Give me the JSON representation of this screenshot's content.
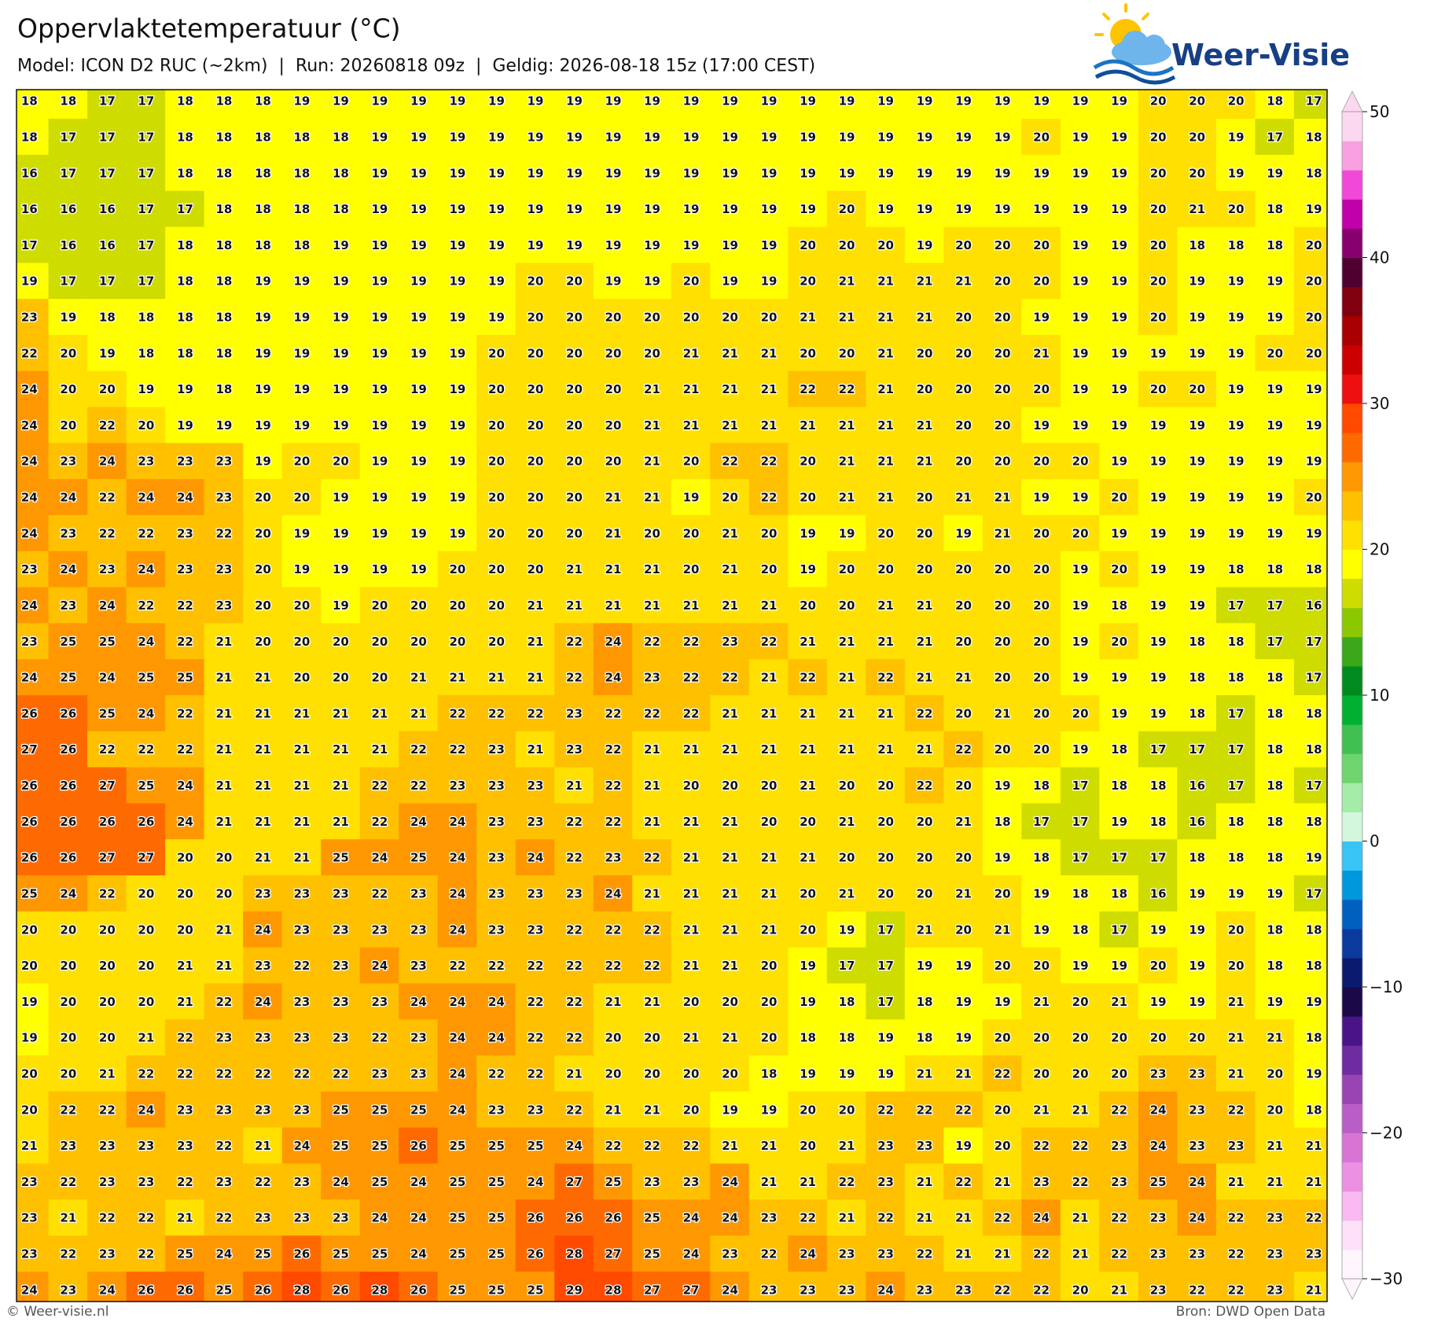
{
  "header": {
    "title": "Oppervlaktetemperatuur (°C)",
    "subtitle": "Model: ICON D2 RUC (~2km)  |  Run: 20260818 09z  |  Geldig: 2026-08-18 15z (17:00 CEST)"
  },
  "logo": {
    "text": "Weer-Visie"
  },
  "map": {
    "rows": [
      [
        18,
        18,
        17,
        17,
        18,
        18,
        18,
        19,
        19,
        19,
        19,
        19,
        19,
        19,
        19,
        19,
        19,
        19,
        19,
        19,
        19,
        19,
        19,
        19,
        19,
        19,
        19,
        19,
        19,
        20,
        20,
        20,
        18,
        17
      ],
      [
        18,
        17,
        17,
        17,
        18,
        18,
        18,
        18,
        18,
        19,
        19,
        19,
        19,
        19,
        19,
        19,
        19,
        19,
        19,
        19,
        19,
        19,
        19,
        19,
        19,
        19,
        20,
        19,
        19,
        20,
        20,
        19,
        17,
        18
      ],
      [
        16,
        17,
        17,
        17,
        18,
        18,
        18,
        18,
        18,
        19,
        19,
        19,
        19,
        19,
        19,
        19,
        19,
        19,
        19,
        19,
        19,
        19,
        19,
        19,
        19,
        19,
        19,
        19,
        19,
        20,
        20,
        19,
        19,
        18
      ],
      [
        16,
        16,
        16,
        17,
        17,
        18,
        18,
        18,
        18,
        19,
        19,
        19,
        19,
        19,
        19,
        19,
        19,
        19,
        19,
        19,
        19,
        20,
        19,
        19,
        19,
        19,
        19,
        19,
        19,
        20,
        21,
        20,
        18,
        19
      ],
      [
        17,
        16,
        16,
        17,
        18,
        18,
        18,
        18,
        19,
        19,
        19,
        19,
        19,
        19,
        19,
        19,
        19,
        19,
        19,
        19,
        20,
        20,
        20,
        19,
        20,
        20,
        20,
        19,
        19,
        20,
        18,
        18,
        18,
        20
      ],
      [
        19,
        17,
        17,
        17,
        18,
        18,
        19,
        19,
        19,
        19,
        19,
        19,
        19,
        20,
        20,
        19,
        19,
        20,
        19,
        19,
        20,
        21,
        21,
        21,
        21,
        20,
        20,
        19,
        19,
        20,
        19,
        19,
        19,
        20
      ],
      [
        23,
        19,
        18,
        18,
        18,
        18,
        19,
        19,
        19,
        19,
        19,
        19,
        19,
        20,
        20,
        20,
        20,
        20,
        20,
        20,
        21,
        21,
        21,
        21,
        20,
        20,
        19,
        19,
        19,
        20,
        19,
        19,
        19,
        20
      ],
      [
        22,
        20,
        19,
        18,
        18,
        18,
        19,
        19,
        19,
        19,
        19,
        19,
        20,
        20,
        20,
        20,
        20,
        21,
        21,
        21,
        20,
        20,
        21,
        20,
        20,
        20,
        21,
        19,
        19,
        19,
        19,
        19,
        20,
        20
      ],
      [
        24,
        20,
        20,
        19,
        19,
        18,
        19,
        19,
        19,
        19,
        19,
        19,
        20,
        20,
        20,
        20,
        21,
        21,
        21,
        21,
        22,
        22,
        21,
        20,
        20,
        20,
        20,
        19,
        19,
        20,
        20,
        19,
        19,
        19
      ],
      [
        24,
        20,
        22,
        20,
        19,
        19,
        19,
        19,
        19,
        19,
        19,
        19,
        20,
        20,
        20,
        20,
        21,
        21,
        21,
        21,
        21,
        21,
        21,
        21,
        20,
        20,
        19,
        19,
        19,
        19,
        19,
        19,
        19,
        19
      ],
      [
        24,
        23,
        24,
        23,
        23,
        23,
        19,
        20,
        20,
        19,
        19,
        19,
        20,
        20,
        20,
        20,
        21,
        20,
        22,
        22,
        20,
        21,
        21,
        21,
        20,
        20,
        20,
        20,
        19,
        19,
        19,
        19,
        19,
        19
      ],
      [
        24,
        24,
        22,
        24,
        24,
        23,
        20,
        20,
        19,
        19,
        19,
        19,
        20,
        20,
        20,
        21,
        21,
        19,
        20,
        22,
        20,
        21,
        21,
        20,
        21,
        21,
        19,
        19,
        20,
        19,
        19,
        19,
        19,
        20
      ],
      [
        24,
        23,
        22,
        22,
        23,
        22,
        20,
        19,
        19,
        19,
        19,
        19,
        20,
        20,
        20,
        21,
        20,
        20,
        21,
        20,
        19,
        19,
        20,
        20,
        19,
        21,
        20,
        20,
        19,
        19,
        19,
        19,
        19,
        19
      ],
      [
        23,
        24,
        23,
        24,
        23,
        23,
        20,
        19,
        19,
        19,
        19,
        20,
        20,
        20,
        21,
        21,
        21,
        20,
        21,
        20,
        19,
        20,
        20,
        20,
        20,
        20,
        20,
        19,
        20,
        19,
        19,
        18,
        18,
        18
      ],
      [
        24,
        23,
        24,
        22,
        22,
        23,
        20,
        20,
        19,
        20,
        20,
        20,
        20,
        21,
        21,
        21,
        21,
        21,
        21,
        21,
        20,
        20,
        21,
        21,
        20,
        20,
        20,
        19,
        18,
        19,
        19,
        17,
        17,
        16
      ],
      [
        23,
        25,
        25,
        24,
        22,
        21,
        20,
        20,
        20,
        20,
        20,
        20,
        20,
        21,
        22,
        24,
        22,
        22,
        23,
        22,
        21,
        21,
        21,
        21,
        20,
        20,
        20,
        19,
        20,
        19,
        18,
        18,
        17,
        17
      ],
      [
        24,
        25,
        24,
        25,
        25,
        21,
        21,
        20,
        20,
        20,
        21,
        21,
        21,
        21,
        22,
        24,
        23,
        22,
        22,
        21,
        22,
        21,
        22,
        21,
        21,
        20,
        20,
        19,
        19,
        19,
        18,
        18,
        18,
        17
      ],
      [
        26,
        26,
        25,
        24,
        22,
        21,
        21,
        21,
        21,
        21,
        21,
        22,
        22,
        22,
        23,
        22,
        22,
        22,
        21,
        21,
        21,
        21,
        21,
        22,
        20,
        21,
        20,
        20,
        19,
        19,
        18,
        17,
        18,
        18
      ],
      [
        27,
        26,
        22,
        22,
        22,
        21,
        21,
        21,
        21,
        21,
        22,
        22,
        23,
        21,
        23,
        22,
        21,
        21,
        21,
        21,
        21,
        21,
        21,
        21,
        22,
        20,
        20,
        19,
        18,
        17,
        17,
        17,
        18,
        18
      ],
      [
        26,
        26,
        27,
        25,
        24,
        21,
        21,
        21,
        21,
        22,
        22,
        23,
        23,
        23,
        21,
        22,
        21,
        20,
        20,
        20,
        21,
        20,
        20,
        22,
        20,
        19,
        18,
        17,
        18,
        18,
        16,
        17,
        18,
        17
      ],
      [
        26,
        26,
        26,
        26,
        24,
        21,
        21,
        21,
        21,
        22,
        24,
        24,
        23,
        23,
        22,
        22,
        21,
        21,
        21,
        20,
        20,
        21,
        20,
        20,
        21,
        18,
        17,
        17,
        19,
        18,
        16,
        18,
        18,
        18
      ],
      [
        26,
        26,
        27,
        27,
        20,
        20,
        21,
        21,
        25,
        24,
        25,
        24,
        23,
        24,
        22,
        23,
        22,
        21,
        21,
        21,
        21,
        20,
        20,
        20,
        20,
        19,
        18,
        17,
        17,
        17,
        18,
        18,
        18,
        19
      ],
      [
        25,
        24,
        22,
        20,
        20,
        20,
        23,
        23,
        23,
        22,
        23,
        24,
        23,
        23,
        23,
        24,
        21,
        21,
        21,
        21,
        20,
        21,
        20,
        20,
        21,
        20,
        19,
        18,
        18,
        16,
        19,
        19,
        19,
        17
      ],
      [
        20,
        20,
        20,
        20,
        20,
        21,
        24,
        23,
        23,
        23,
        23,
        24,
        23,
        23,
        22,
        22,
        22,
        21,
        21,
        21,
        20,
        19,
        17,
        21,
        20,
        21,
        19,
        18,
        17,
        19,
        19,
        20,
        18,
        18
      ],
      [
        20,
        20,
        20,
        20,
        21,
        21,
        23,
        22,
        23,
        24,
        23,
        22,
        22,
        22,
        22,
        22,
        22,
        21,
        21,
        20,
        19,
        17,
        17,
        19,
        19,
        20,
        20,
        19,
        19,
        20,
        19,
        20,
        18,
        18
      ],
      [
        19,
        20,
        20,
        20,
        21,
        22,
        24,
        23,
        23,
        23,
        24,
        24,
        24,
        22,
        22,
        21,
        21,
        20,
        20,
        20,
        19,
        18,
        17,
        18,
        19,
        19,
        21,
        20,
        21,
        19,
        19,
        21,
        19,
        19
      ],
      [
        19,
        20,
        20,
        21,
        22,
        23,
        23,
        23,
        23,
        22,
        23,
        24,
        24,
        22,
        22,
        20,
        20,
        21,
        21,
        20,
        18,
        18,
        19,
        18,
        19,
        20,
        20,
        20,
        20,
        20,
        20,
        21,
        21,
        18
      ],
      [
        20,
        20,
        21,
        22,
        22,
        22,
        22,
        22,
        22,
        23,
        23,
        24,
        22,
        22,
        21,
        20,
        20,
        20,
        20,
        18,
        19,
        19,
        19,
        21,
        21,
        22,
        20,
        20,
        20,
        23,
        23,
        21,
        20,
        19
      ],
      [
        20,
        22,
        22,
        24,
        23,
        23,
        23,
        23,
        25,
        25,
        25,
        24,
        23,
        23,
        22,
        21,
        21,
        20,
        19,
        19,
        20,
        20,
        22,
        22,
        22,
        20,
        21,
        21,
        22,
        24,
        23,
        22,
        20,
        18
      ],
      [
        21,
        23,
        23,
        23,
        23,
        22,
        21,
        24,
        25,
        25,
        26,
        25,
        25,
        25,
        24,
        22,
        22,
        22,
        21,
        21,
        20,
        21,
        23,
        23,
        19,
        20,
        22,
        22,
        23,
        24,
        23,
        23,
        21,
        21
      ],
      [
        23,
        22,
        23,
        23,
        22,
        23,
        22,
        23,
        24,
        25,
        24,
        25,
        25,
        24,
        27,
        25,
        23,
        23,
        24,
        21,
        21,
        22,
        23,
        21,
        22,
        21,
        23,
        22,
        23,
        25,
        24,
        21,
        21,
        21
      ],
      [
        23,
        21,
        22,
        22,
        21,
        22,
        23,
        23,
        23,
        24,
        24,
        25,
        25,
        26,
        26,
        26,
        25,
        24,
        24,
        23,
        22,
        21,
        22,
        21,
        21,
        22,
        24,
        21,
        22,
        23,
        24,
        22,
        23,
        22
      ],
      [
        23,
        22,
        23,
        22,
        25,
        24,
        25,
        26,
        25,
        25,
        24,
        25,
        25,
        26,
        28,
        27,
        25,
        24,
        23,
        22,
        24,
        23,
        23,
        22,
        21,
        21,
        22,
        21,
        22,
        23,
        23,
        22,
        23,
        23
      ],
      [
        24,
        23,
        24,
        26,
        26,
        25,
        26,
        28,
        26,
        28,
        26,
        25,
        25,
        25,
        29,
        28,
        27,
        27,
        24,
        23,
        23,
        23,
        24,
        23,
        23,
        22,
        22,
        20,
        21,
        23,
        22,
        22,
        23,
        21
      ]
    ]
  },
  "colorbar": {
    "lim": [
      -30,
      50
    ],
    "ticks": [
      50,
      40,
      30,
      20,
      10,
      0,
      {
        "value": -10,
        "label": "−10"
      },
      {
        "value": -20,
        "label": "−20"
      },
      {
        "value": -30,
        "label": "−30"
      }
    ],
    "colors": [
      "#fff5fd",
      "#fde0f8",
      "#f8b8f0",
      "#ec90e4",
      "#d875d4",
      "#b95ec6",
      "#9a44b4",
      "#6e2ca0",
      "#4a1488",
      "#1a0848",
      "#0a1a6e",
      "#0a3a9e",
      "#0060c0",
      "#0098dc",
      "#38c4f4",
      "#d2f7dc",
      "#a4eca8",
      "#6ed46e",
      "#40c050",
      "#00b030",
      "#008a20",
      "#3aa818",
      "#8cc800",
      "#cedc00",
      "#ffff00",
      "#ffe000",
      "#ffc000",
      "#ff9800",
      "#ff6a00",
      "#ff4a00",
      "#ee1010",
      "#cc0000",
      "#a80000",
      "#800010",
      "#500030",
      "#880070",
      "#c000a8",
      "#f048d8",
      "#f8a0e0",
      "#fcd8f0"
    ]
  },
  "footer": {
    "left": "© Weer-visie.nl",
    "right": "Bron: DWD Open Data"
  }
}
